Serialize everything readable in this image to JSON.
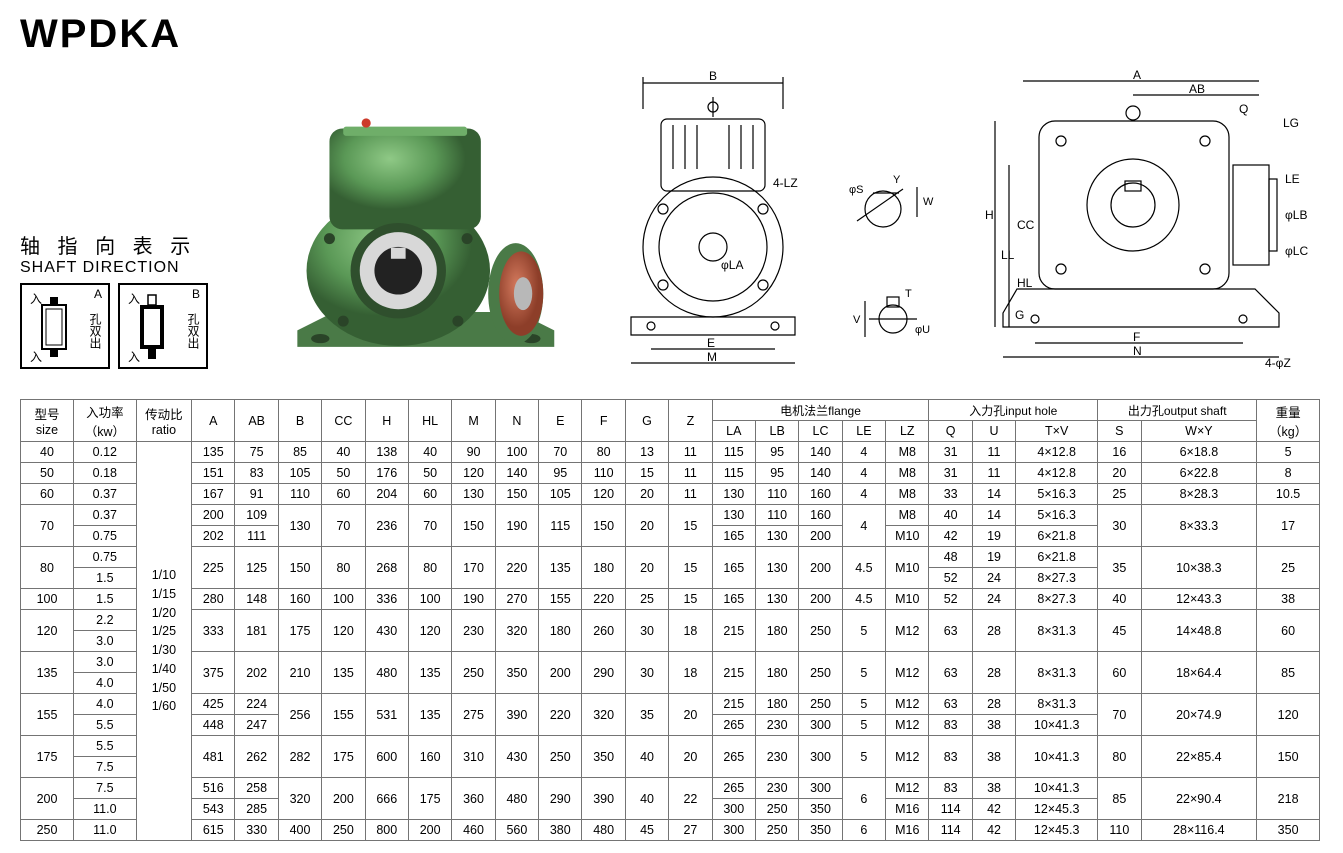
{
  "title": "WPDKA",
  "shaft": {
    "cn": "轴 指 向 表 示",
    "en": "SHAFT DIRECTION",
    "boxA": {
      "letter": "A",
      "cn": "孔双出"
    },
    "boxB": {
      "letter": "B",
      "cn": "孔双出"
    }
  },
  "drawing_labels": {
    "B": "B",
    "LZ4": "4-LZ",
    "LA": "φLA",
    "E": "E",
    "M": "M",
    "phiS": "φS",
    "Y": "Y",
    "W": "W",
    "T": "T",
    "V": "V",
    "phiU": "φU",
    "A": "A",
    "AB": "AB",
    "Q": "Q",
    "LG": "LG",
    "H": "H",
    "LL": "LL",
    "CC": "CC",
    "HL": "HL",
    "G": "G",
    "F": "F",
    "N": "N",
    "Z4": "4-φZ",
    "LE": "LE",
    "LB": "φLB",
    "LC": "φLC"
  },
  "table": {
    "headers": {
      "size": "型号\nsize",
      "kw": "入功率\n（kw）",
      "ratio": "传动比\nratio",
      "dims": [
        "A",
        "AB",
        "B",
        "CC",
        "H",
        "HL",
        "M",
        "N",
        "E",
        "F",
        "G",
        "Z"
      ],
      "flange_group": "电机法兰flange",
      "flange": [
        "LA",
        "LB",
        "LC",
        "LE",
        "LZ"
      ],
      "input_group": "入力孔input hole",
      "input": [
        "Q",
        "U",
        "T×V"
      ],
      "output_group": "出力孔output shaft",
      "output": [
        "S",
        "W×Y"
      ],
      "weight": "重量\n（kg）"
    },
    "ratio_text": "1/10\n1/15\n1/20\n1/25\n1/30\n1/40\n1/50\n1/60",
    "rows": [
      {
        "size": "40",
        "kw": [
          "0.12"
        ],
        "A": "135",
        "AB": "75",
        "B": "85",
        "CC": "40",
        "H": "138",
        "HL": "40",
        "M": "90",
        "N": "100",
        "E": "70",
        "F": "80",
        "G": "13",
        "Z": "11",
        "LA": [
          "115"
        ],
        "LB": [
          "95"
        ],
        "LC": [
          "140"
        ],
        "LE": [
          "4"
        ],
        "LZ": [
          "M8"
        ],
        "Q": [
          "31"
        ],
        "U": [
          "11"
        ],
        "TV": [
          "4×12.8"
        ],
        "S": "16",
        "WY": "6×18.8",
        "wt": "5"
      },
      {
        "size": "50",
        "kw": [
          "0.18"
        ],
        "A": "151",
        "AB": "83",
        "B": "105",
        "CC": "50",
        "H": "176",
        "HL": "50",
        "M": "120",
        "N": "140",
        "E": "95",
        "F": "110",
        "G": "15",
        "Z": "11",
        "LA": [
          "115"
        ],
        "LB": [
          "95"
        ],
        "LC": [
          "140"
        ],
        "LE": [
          "4"
        ],
        "LZ": [
          "M8"
        ],
        "Q": [
          "31"
        ],
        "U": [
          "11"
        ],
        "TV": [
          "4×12.8"
        ],
        "S": "20",
        "WY": "6×22.8",
        "wt": "8"
      },
      {
        "size": "60",
        "kw": [
          "0.37"
        ],
        "A": "167",
        "AB": "91",
        "B": "110",
        "CC": "60",
        "H": "204",
        "HL": "60",
        "M": "130",
        "N": "150",
        "E": "105",
        "F": "120",
        "G": "20",
        "Z": "11",
        "LA": [
          "130"
        ],
        "LB": [
          "110"
        ],
        "LC": [
          "160"
        ],
        "LE": [
          "4"
        ],
        "LZ": [
          "M8"
        ],
        "Q": [
          "33"
        ],
        "U": [
          "14"
        ],
        "TV": [
          "5×16.3"
        ],
        "S": "25",
        "WY": "8×28.3",
        "wt": "10.5"
      },
      {
        "size": "70",
        "kw": [
          "0.37",
          "0.75"
        ],
        "A": [
          "200",
          "202"
        ],
        "AB": [
          "109",
          "111"
        ],
        "B": "130",
        "CC": "70",
        "H": "236",
        "HL": "70",
        "M": "150",
        "N": "190",
        "E": "115",
        "F": "150",
        "G": "20",
        "Z": "15",
        "LA": [
          "130",
          "165"
        ],
        "LB": [
          "110",
          "130"
        ],
        "LC": [
          "160",
          "200"
        ],
        "LE": [
          "4"
        ],
        "LZ": [
          "M8",
          "M10"
        ],
        "Q": [
          "40",
          "42"
        ],
        "U": [
          "14",
          "19"
        ],
        "TV": [
          "5×16.3",
          "6×21.8"
        ],
        "S": "30",
        "WY": "8×33.3",
        "wt": "17"
      },
      {
        "size": "80",
        "kw": [
          "0.75",
          "1.5"
        ],
        "A": "225",
        "AB": "125",
        "B": "150",
        "CC": "80",
        "H": "268",
        "HL": "80",
        "M": "170",
        "N": "220",
        "E": "135",
        "F": "180",
        "G": "20",
        "Z": "15",
        "LA": [
          "165"
        ],
        "LB": [
          "130"
        ],
        "LC": [
          "200"
        ],
        "LE": [
          "4.5"
        ],
        "LZ": [
          "M10"
        ],
        "Q": [
          "48",
          "52"
        ],
        "U": [
          "19",
          "24"
        ],
        "TV": [
          "6×21.8",
          "8×27.3"
        ],
        "S": "35",
        "WY": "10×38.3",
        "wt": "25"
      },
      {
        "size": "100",
        "kw": [
          "1.5"
        ],
        "A": "280",
        "AB": "148",
        "B": "160",
        "CC": "100",
        "H": "336",
        "HL": "100",
        "M": "190",
        "N": "270",
        "E": "155",
        "F": "220",
        "G": "25",
        "Z": "15",
        "LA": [
          "165"
        ],
        "LB": [
          "130"
        ],
        "LC": [
          "200"
        ],
        "LE": [
          "4.5"
        ],
        "LZ": [
          "M10"
        ],
        "Q": [
          "52"
        ],
        "U": [
          "24"
        ],
        "TV": [
          "8×27.3"
        ],
        "S": "40",
        "WY": "12×43.3",
        "wt": "38"
      },
      {
        "size": "120",
        "kw": [
          "2.2",
          "3.0"
        ],
        "A": "333",
        "AB": "181",
        "B": "175",
        "CC": "120",
        "H": "430",
        "HL": "120",
        "M": "230",
        "N": "320",
        "E": "180",
        "F": "260",
        "G": "30",
        "Z": "18",
        "LA": [
          "215"
        ],
        "LB": [
          "180"
        ],
        "LC": [
          "250"
        ],
        "LE": [
          "5"
        ],
        "LZ": [
          "M12"
        ],
        "Q": [
          "63"
        ],
        "U": [
          "28"
        ],
        "TV": [
          "8×31.3"
        ],
        "S": "45",
        "WY": "14×48.8",
        "wt": "60"
      },
      {
        "size": "135",
        "kw": [
          "3.0",
          "4.0"
        ],
        "A": "375",
        "AB": "202",
        "B": "210",
        "CC": "135",
        "H": "480",
        "HL": "135",
        "M": "250",
        "N": "350",
        "E": "200",
        "F": "290",
        "G": "30",
        "Z": "18",
        "LA": [
          "215"
        ],
        "LB": [
          "180"
        ],
        "LC": [
          "250"
        ],
        "LE": [
          "5"
        ],
        "LZ": [
          "M12"
        ],
        "Q": [
          "63"
        ],
        "U": [
          "28"
        ],
        "TV": [
          "8×31.3"
        ],
        "S": "60",
        "WY": "18×64.4",
        "wt": "85"
      },
      {
        "size": "155",
        "kw": [
          "4.0",
          "5.5"
        ],
        "A": [
          "425",
          "448"
        ],
        "AB": [
          "224",
          "247"
        ],
        "B": "256",
        "CC": "155",
        "H": "531",
        "HL": "135",
        "M": "275",
        "N": "390",
        "E": "220",
        "F": "320",
        "G": "35",
        "Z": "20",
        "LA": [
          "215",
          "265"
        ],
        "LB": [
          "180",
          "230"
        ],
        "LC": [
          "250",
          "300"
        ],
        "LE": [
          "5",
          "5"
        ],
        "LZ": [
          "M12",
          "M12"
        ],
        "Q": [
          "63",
          "83"
        ],
        "U": [
          "28",
          "38"
        ],
        "TV": [
          "8×31.3",
          "10×41.3"
        ],
        "S": "70",
        "WY": "20×74.9",
        "wt": "120"
      },
      {
        "size": "175",
        "kw": [
          "5.5",
          "7.5"
        ],
        "A": "481",
        "AB": "262",
        "B": "282",
        "CC": "175",
        "H": "600",
        "HL": "160",
        "M": "310",
        "N": "430",
        "E": "250",
        "F": "350",
        "G": "40",
        "Z": "20",
        "LA": [
          "265"
        ],
        "LB": [
          "230"
        ],
        "LC": [
          "300"
        ],
        "LE": [
          "5"
        ],
        "LZ": [
          "M12"
        ],
        "Q": [
          "83"
        ],
        "U": [
          "38"
        ],
        "TV": [
          "10×41.3"
        ],
        "S": "80",
        "WY": "22×85.4",
        "wt": "150"
      },
      {
        "size": "200",
        "kw": [
          "7.5",
          "11.0"
        ],
        "A": [
          "516",
          "543"
        ],
        "AB": [
          "258",
          "285"
        ],
        "B": "320",
        "CC": "200",
        "H": "666",
        "HL": "175",
        "M": "360",
        "N": "480",
        "E": "290",
        "F": "390",
        "G": "40",
        "Z": "22",
        "LA": [
          "265",
          "300"
        ],
        "LB": [
          "230",
          "250"
        ],
        "LC": [
          "300",
          "350"
        ],
        "LE": [
          "6"
        ],
        "LZ": [
          "M12",
          "M16"
        ],
        "Q": [
          "83",
          "114"
        ],
        "U": [
          "38",
          "42"
        ],
        "TV": [
          "10×41.3",
          "12×45.3"
        ],
        "S": "85",
        "WY": "22×90.4",
        "wt": "218"
      },
      {
        "size": "250",
        "kw": [
          "11.0"
        ],
        "A": "615",
        "AB": "330",
        "B": "400",
        "CC": "250",
        "H": "800",
        "HL": "200",
        "M": "460",
        "N": "560",
        "E": "380",
        "F": "480",
        "G": "45",
        "Z": "27",
        "LA": [
          "300"
        ],
        "LB": [
          "250"
        ],
        "LC": [
          "350"
        ],
        "LE": [
          "6"
        ],
        "LZ": [
          "M16"
        ],
        "Q": [
          "114"
        ],
        "U": [
          "42"
        ],
        "TV": [
          "12×45.3"
        ],
        "S": "110",
        "WY": "28×116.4",
        "wt": "350"
      }
    ]
  },
  "colors": {
    "gearbox_body": "#5a9856",
    "gearbox_dark": "#3b6e3a",
    "gearbox_light": "#7ab574",
    "flange_red": "#b85a3e",
    "metal": "#d8d8d8",
    "line": "#000000",
    "table_border": "#747474"
  }
}
